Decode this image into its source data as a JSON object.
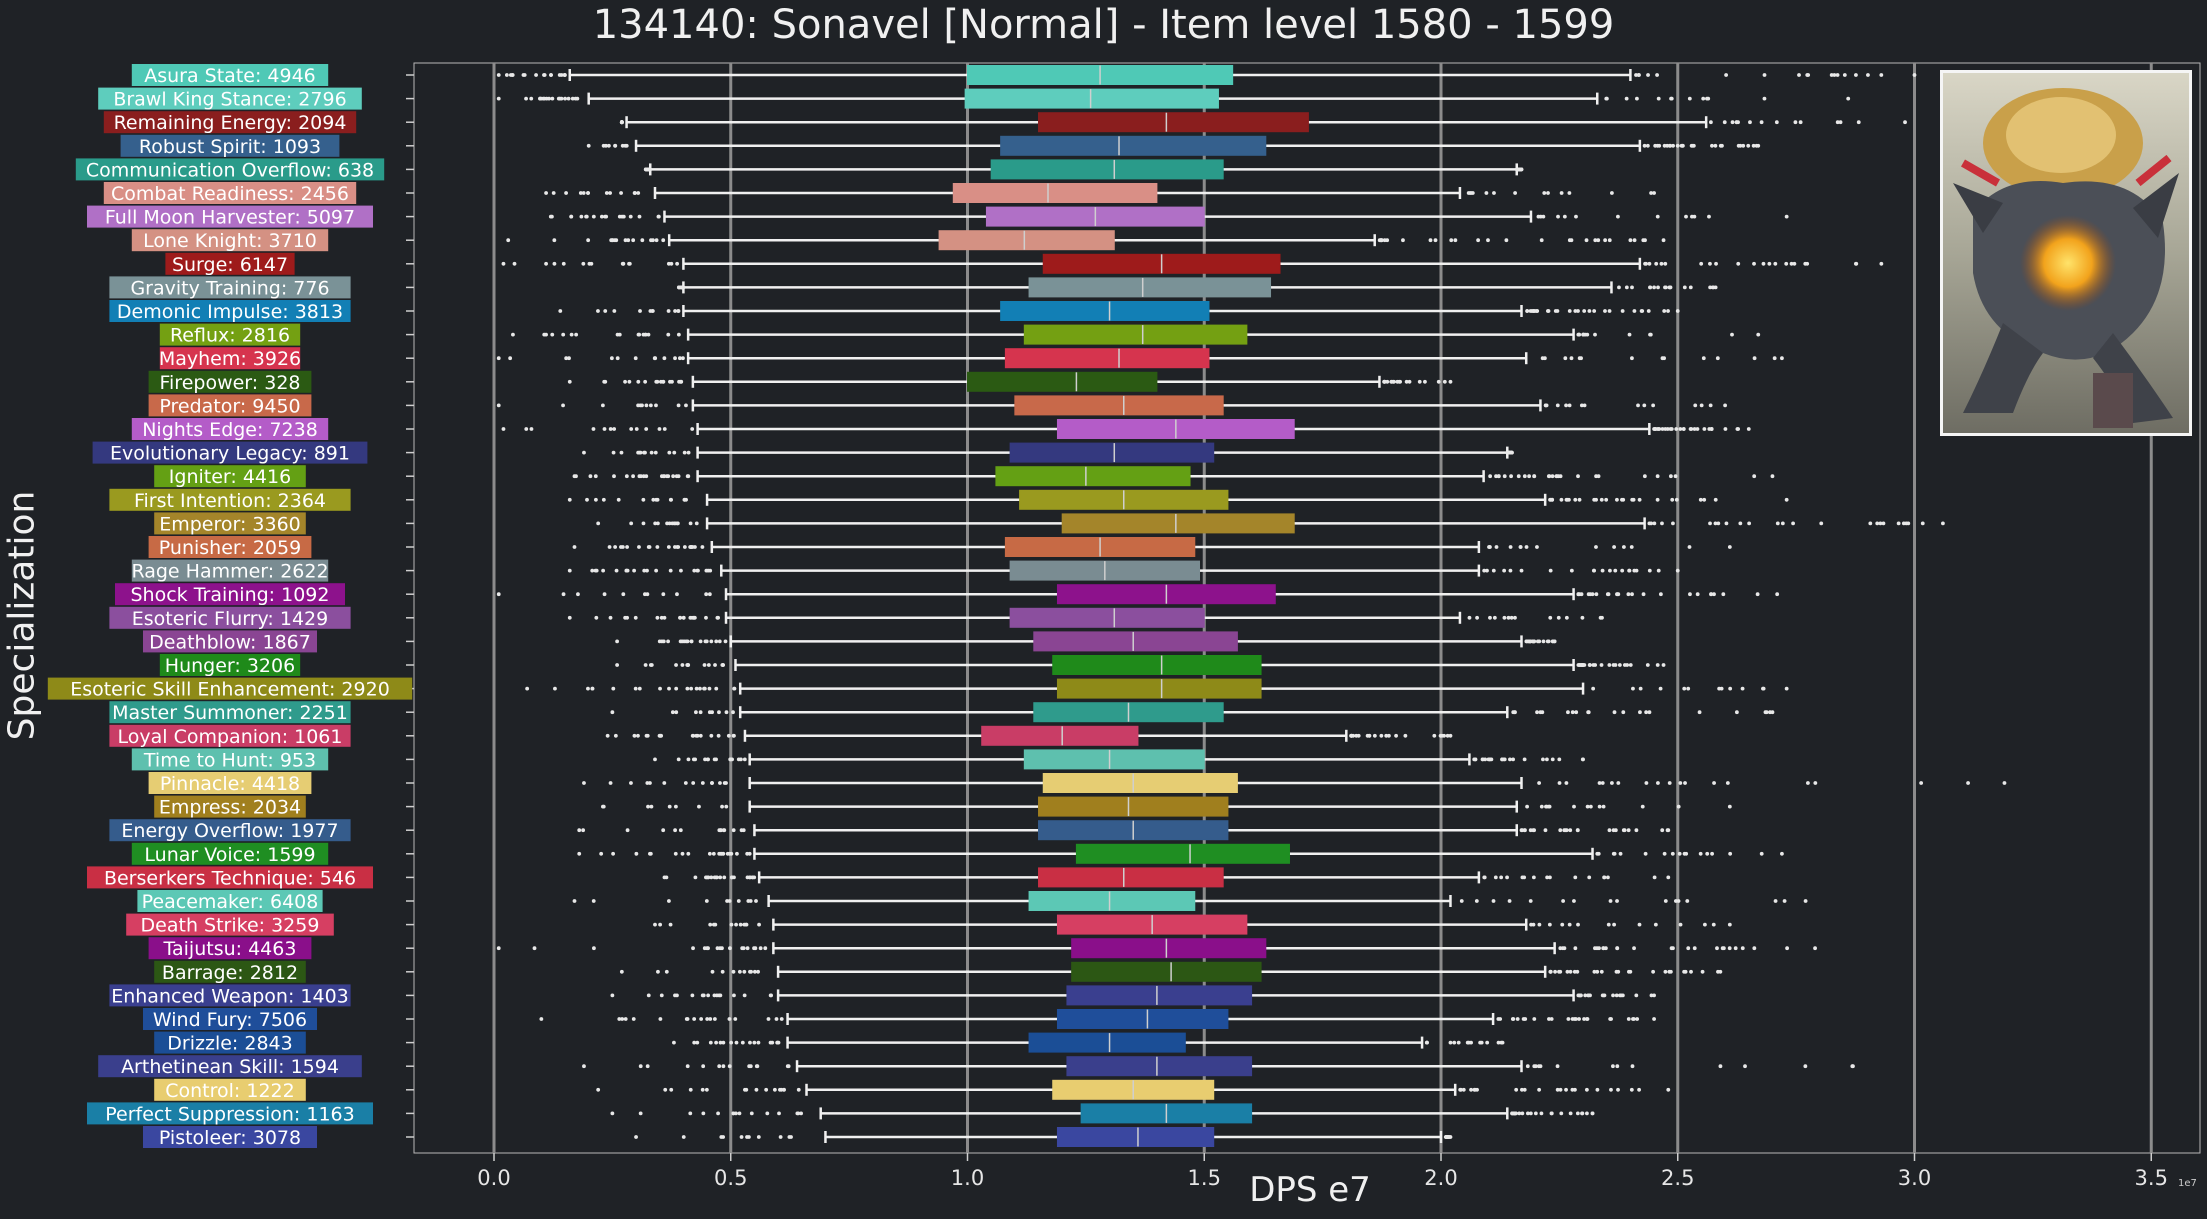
{
  "title": "134140: Sonavel [Normal] - Item level 1580 - 1599",
  "xlabel": "DPS e7",
  "ylabel": "Specialization",
  "offset_label": "1e7",
  "image_label": "boss-portrait",
  "chart_data": {
    "type": "box",
    "xlim": [
      -0.17,
      3.6
    ],
    "xticks": [
      0.0,
      0.5,
      1.0,
      1.5,
      2.0,
      2.5,
      3.0,
      3.5
    ],
    "xtick_labels": [
      "0.0",
      "0.5",
      "1.0",
      "1.5",
      "2.0",
      "2.5",
      "3.0",
      "3.5"
    ],
    "grid": "vertical",
    "series": [
      {
        "label": "Asura State: 4946",
        "color": "#4fc9b6",
        "whisker": [
          0.16,
          2.4
        ],
        "box": [
          1.0,
          1.56
        ],
        "median": 1.28
      },
      {
        "label": "Brawl King Stance: 2796",
        "color": "#5ecdbd",
        "whisker": [
          0.2,
          2.33
        ],
        "box": [
          0.995,
          1.53
        ],
        "median": 1.26
      },
      {
        "label": "Remaining Energy: 2094",
        "color": "#8a1e1e",
        "whisker": [
          0.28,
          2.56
        ],
        "box": [
          1.15,
          1.72
        ],
        "median": 1.42
      },
      {
        "label": "Robust Spirit: 1093",
        "color": "#35608d",
        "whisker": [
          0.3,
          2.42
        ],
        "box": [
          1.07,
          1.63
        ],
        "median": 1.32
      },
      {
        "label": "Communication Overflow: 638",
        "color": "#2a9b8a",
        "whisker": [
          0.33,
          2.16
        ],
        "box": [
          1.05,
          1.54
        ],
        "median": 1.31
      },
      {
        "label": "Combat Readiness: 2456",
        "color": "#d98f86",
        "whisker": [
          0.34,
          2.04
        ],
        "box": [
          0.97,
          1.4
        ],
        "median": 1.17
      },
      {
        "label": "Full Moon Harvester: 5097",
        "color": "#b070c6",
        "whisker": [
          0.36,
          2.19
        ],
        "box": [
          1.04,
          1.5
        ],
        "median": 1.27
      },
      {
        "label": "Lone Knight: 3710",
        "color": "#d49183",
        "whisker": [
          0.37,
          1.86
        ],
        "box": [
          0.94,
          1.31
        ],
        "median": 1.12
      },
      {
        "label": "Surge: 6147",
        "color": "#9e1b1b",
        "whisker": [
          0.4,
          2.42
        ],
        "box": [
          1.16,
          1.66
        ],
        "median": 1.41
      },
      {
        "label": "Gravity Training: 776",
        "color": "#7a9297",
        "whisker": [
          0.4,
          2.36
        ],
        "box": [
          1.13,
          1.64
        ],
        "median": 1.37
      },
      {
        "label": "Demonic Impulse: 3813",
        "color": "#127fb5",
        "whisker": [
          0.4,
          2.17
        ],
        "box": [
          1.07,
          1.51
        ],
        "median": 1.3
      },
      {
        "label": "Reflux: 2816",
        "color": "#74a012",
        "whisker": [
          0.41,
          2.28
        ],
        "box": [
          1.12,
          1.59
        ],
        "median": 1.37
      },
      {
        "label": "Mayhem: 3926",
        "color": "#d6344e",
        "whisker": [
          0.41,
          2.18
        ],
        "box": [
          1.08,
          1.51
        ],
        "median": 1.32
      },
      {
        "label": "Firepower: 328",
        "color": "#2b5a13",
        "whisker": [
          0.42,
          1.87
        ],
        "box": [
          1.0,
          1.4
        ],
        "median": 1.23
      },
      {
        "label": "Predator: 9450",
        "color": "#c8694a",
        "whisker": [
          0.42,
          2.21
        ],
        "box": [
          1.1,
          1.54
        ],
        "median": 1.33
      },
      {
        "label": "Nights Edge: 7238",
        "color": "#b45cc8",
        "whisker": [
          0.43,
          2.44
        ],
        "box": [
          1.19,
          1.69
        ],
        "median": 1.44
      },
      {
        "label": "Evolutionary Legacy: 891",
        "color": "#34397f",
        "whisker": [
          0.43,
          2.14
        ],
        "box": [
          1.09,
          1.52
        ],
        "median": 1.31
      },
      {
        "label": "Igniter: 4416",
        "color": "#64a014",
        "whisker": [
          0.43,
          2.09
        ],
        "box": [
          1.06,
          1.47
        ],
        "median": 1.25
      },
      {
        "label": "First Intention: 2364",
        "color": "#9a9a1f",
        "whisker": [
          0.45,
          2.22
        ],
        "box": [
          1.11,
          1.55
        ],
        "median": 1.33
      },
      {
        "label": "Emperor: 3360",
        "color": "#a4852a",
        "whisker": [
          0.45,
          2.43
        ],
        "box": [
          1.2,
          1.69
        ],
        "median": 1.44
      },
      {
        "label": "Punisher: 2059",
        "color": "#c76a45",
        "whisker": [
          0.46,
          2.08
        ],
        "box": [
          1.08,
          1.48
        ],
        "median": 1.28
      },
      {
        "label": "Rage Hammer: 2622",
        "color": "#7a8c92",
        "whisker": [
          0.48,
          2.08
        ],
        "box": [
          1.09,
          1.49
        ],
        "median": 1.29
      },
      {
        "label": "Shock Training: 1092",
        "color": "#8d128c",
        "whisker": [
          0.49,
          2.28
        ],
        "box": [
          1.19,
          1.65
        ],
        "median": 1.42
      },
      {
        "label": "Esoteric Flurry: 1429",
        "color": "#8b4f9e",
        "whisker": [
          0.49,
          2.04
        ],
        "box": [
          1.09,
          1.5
        ],
        "median": 1.31
      },
      {
        "label": "Deathblow: 1867",
        "color": "#8a4593",
        "whisker": [
          0.5,
          2.17
        ],
        "box": [
          1.14,
          1.57
        ],
        "median": 1.35
      },
      {
        "label": "Hunger: 3206",
        "color": "#1f8a1a",
        "whisker": [
          0.51,
          2.28
        ],
        "box": [
          1.18,
          1.62
        ],
        "median": 1.41
      },
      {
        "label": "Esoteric Skill Enhancement: 2920",
        "color": "#8e8a18",
        "whisker": [
          0.52,
          2.3
        ],
        "box": [
          1.19,
          1.62
        ],
        "median": 1.41
      },
      {
        "label": "Master Summoner: 2251",
        "color": "#2f9b8c",
        "whisker": [
          0.52,
          2.14
        ],
        "box": [
          1.14,
          1.54
        ],
        "median": 1.34
      },
      {
        "label": "Loyal Companion: 1061",
        "color": "#c93d66",
        "whisker": [
          0.53,
          1.8
        ],
        "box": [
          1.03,
          1.36
        ],
        "median": 1.2
      },
      {
        "label": "Time to Hunt: 953",
        "color": "#5ec0ae",
        "whisker": [
          0.54,
          2.06
        ],
        "box": [
          1.12,
          1.5
        ],
        "median": 1.3
      },
      {
        "label": "Pinnacle: 4418",
        "color": "#e6cd73",
        "whisker": [
          0.54,
          2.17
        ],
        "box": [
          1.16,
          1.57
        ],
        "median": 1.35
      },
      {
        "label": "Empress: 2034",
        "color": "#a07f1e",
        "whisker": [
          0.54,
          2.16
        ],
        "box": [
          1.15,
          1.55
        ],
        "median": 1.34
      },
      {
        "label": "Energy Overflow: 1977",
        "color": "#355c8c",
        "whisker": [
          0.55,
          2.16
        ],
        "box": [
          1.15,
          1.55
        ],
        "median": 1.35
      },
      {
        "label": "Lunar Voice: 1599",
        "color": "#1f8e22",
        "whisker": [
          0.55,
          2.32
        ],
        "box": [
          1.23,
          1.68
        ],
        "median": 1.47
      },
      {
        "label": "Berserkers Technique: 546",
        "color": "#c92f44",
        "whisker": [
          0.56,
          2.08
        ],
        "box": [
          1.15,
          1.54
        ],
        "median": 1.33
      },
      {
        "label": "Peacemaker: 6408",
        "color": "#5cc8b5",
        "whisker": [
          0.58,
          2.02
        ],
        "box": [
          1.13,
          1.48
        ],
        "median": 1.3
      },
      {
        "label": "Death Strike: 3259",
        "color": "#d63f62",
        "whisker": [
          0.59,
          2.18
        ],
        "box": [
          1.19,
          1.59
        ],
        "median": 1.39
      },
      {
        "label": "Taijutsu: 4463",
        "color": "#8a0f8a",
        "whisker": [
          0.59,
          2.24
        ],
        "box": [
          1.22,
          1.63
        ],
        "median": 1.42
      },
      {
        "label": "Barrage: 2812",
        "color": "#2c5714",
        "whisker": [
          0.6,
          2.22
        ],
        "box": [
          1.22,
          1.62
        ],
        "median": 1.43
      },
      {
        "label": "Enhanced Weapon: 1403",
        "color": "#3a3f8f",
        "whisker": [
          0.6,
          2.28
        ],
        "box": [
          1.21,
          1.6
        ],
        "median": 1.4
      },
      {
        "label": "Wind Fury: 7506",
        "color": "#1f4e9a",
        "whisker": [
          0.62,
          2.11
        ],
        "box": [
          1.19,
          1.55
        ],
        "median": 1.38
      },
      {
        "label": "Drizzle: 2843",
        "color": "#1b4e96",
        "whisker": [
          0.62,
          1.96
        ],
        "box": [
          1.13,
          1.46
        ],
        "median": 1.3
      },
      {
        "label": "Arthetinean Skill: 1594",
        "color": "#3a3f8c",
        "whisker": [
          0.64,
          2.17
        ],
        "box": [
          1.21,
          1.6
        ],
        "median": 1.4
      },
      {
        "label": "Control: 1222",
        "color": "#e8cd70",
        "whisker": [
          0.66,
          2.03
        ],
        "box": [
          1.18,
          1.52
        ],
        "median": 1.35
      },
      {
        "label": "Perfect Suppression: 1163",
        "color": "#1a7fa6",
        "whisker": [
          0.69,
          2.14
        ],
        "box": [
          1.24,
          1.6
        ],
        "median": 1.42
      },
      {
        "label": "Pistoleer: 3078",
        "color": "#3a47a0",
        "whisker": [
          0.7,
          2.0
        ],
        "box": [
          1.19,
          1.52
        ],
        "median": 1.36
      }
    ],
    "outlier_bounds": [
      [
        0.01,
        3.0
      ],
      [
        0.01,
        2.86
      ],
      [
        0.27,
        2.98
      ],
      [
        0.2,
        2.67
      ],
      [
        0.33,
        2.16
      ],
      [
        0.11,
        2.45
      ],
      [
        0.12,
        2.73
      ],
      [
        0.03,
        2.47
      ],
      [
        0.02,
        2.93
      ],
      [
        0.4,
        2.58
      ],
      [
        0.14,
        2.5
      ],
      [
        0.04,
        2.67
      ],
      [
        0.01,
        2.72
      ],
      [
        0.16,
        2.02
      ],
      [
        0.01,
        2.6
      ],
      [
        0.02,
        2.65
      ],
      [
        0.19,
        2.14
      ],
      [
        0.17,
        2.7
      ],
      [
        0.16,
        2.73
      ],
      [
        0.22,
        3.06
      ],
      [
        0.17,
        2.61
      ],
      [
        0.16,
        2.5
      ],
      [
        0.01,
        2.71
      ],
      [
        0.16,
        2.34
      ],
      [
        0.26,
        2.24
      ],
      [
        0.26,
        2.47
      ],
      [
        0.07,
        2.73
      ],
      [
        0.25,
        2.7
      ],
      [
        0.24,
        2.02
      ],
      [
        0.34,
        2.3
      ],
      [
        0.19,
        3.19
      ],
      [
        0.23,
        2.61
      ],
      [
        0.18,
        2.48
      ],
      [
        0.18,
        2.72
      ],
      [
        0.36,
        2.48
      ],
      [
        0.17,
        2.77
      ],
      [
        0.34,
        2.61
      ],
      [
        0.01,
        2.79
      ],
      [
        0.27,
        2.59
      ],
      [
        0.25,
        2.45
      ],
      [
        0.1,
        2.45
      ],
      [
        0.38,
        2.13
      ],
      [
        0.19,
        2.87
      ],
      [
        0.22,
        2.48
      ],
      [
        0.25,
        2.32
      ],
      [
        0.3,
        2.02
      ]
    ]
  }
}
